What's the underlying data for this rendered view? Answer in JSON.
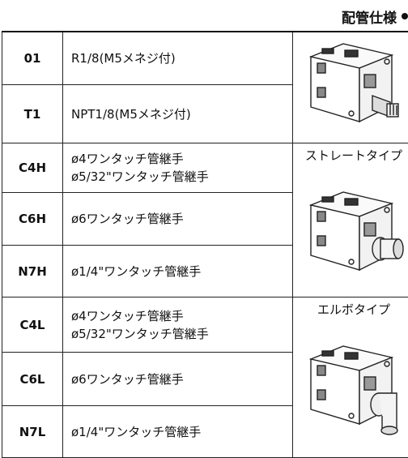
{
  "header": {
    "title": "配管仕様"
  },
  "groups": [
    {
      "label": null,
      "rows": [
        {
          "code": "01",
          "description": [
            "R1/8(M5メネジ付)"
          ]
        },
        {
          "code": "T1",
          "description": [
            "NPT1/8(M5メネジ付)"
          ]
        }
      ]
    },
    {
      "label": "ストレートタイプ",
      "rows": [
        {
          "code": "C4H",
          "description": [
            "ø4ワンタッチ管継手",
            "ø5/32\"ワンタッチ管継手"
          ]
        },
        {
          "code": "C6H",
          "description": [
            "ø6ワンタッチ管継手"
          ]
        },
        {
          "code": "N7H",
          "description": [
            "ø1/4\"ワンタッチ管継手"
          ]
        }
      ]
    },
    {
      "label": "エルボタイプ",
      "rows": [
        {
          "code": "C4L",
          "description": [
            "ø4ワンタッチ管継手",
            "ø5/32\"ワンタッチ管継手"
          ]
        },
        {
          "code": "C6L",
          "description": [
            "ø6ワンタッチ管継手"
          ]
        },
        {
          "code": "N7L",
          "description": [
            "ø1/4\"ワンタッチ管継手"
          ]
        }
      ]
    }
  ]
}
